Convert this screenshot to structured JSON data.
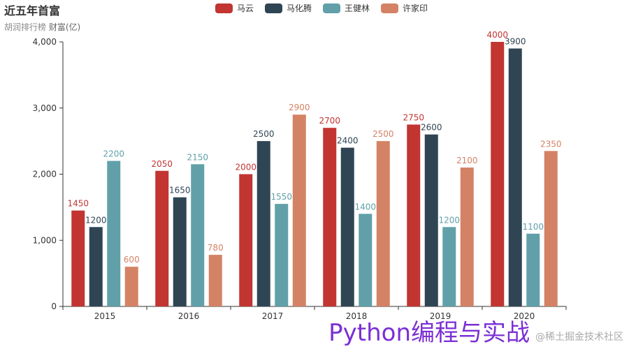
{
  "header": {
    "title": "近五年首富",
    "subtitle": "胡润排行榜",
    "unit": "财富(亿)"
  },
  "colors": [
    "#c23531",
    "#2f4554",
    "#61a0a8",
    "#d48265"
  ],
  "watermark": {
    "main": "Python编程与实战",
    "sub": "@稀土掘金技术社区"
  },
  "chart_data": {
    "type": "bar",
    "categories": [
      "2015",
      "2016",
      "2017",
      "2018",
      "2019",
      "2020"
    ],
    "series": [
      {
        "name": "马云",
        "values": [
          1450,
          2050,
          2000,
          2700,
          2750,
          4000
        ]
      },
      {
        "name": "马化腾",
        "values": [
          1200,
          1650,
          2500,
          2400,
          2600,
          3900
        ]
      },
      {
        "name": "王健林",
        "values": [
          2200,
          2150,
          1550,
          1400,
          1200,
          1100
        ]
      },
      {
        "name": "许家印",
        "values": [
          600,
          780,
          2900,
          2500,
          2100,
          2350
        ]
      }
    ],
    "ylim": [
      0,
      4000
    ],
    "yticks": [
      "0",
      "1,000",
      "2,000",
      "3,000",
      "4,000"
    ],
    "legend_position": "top-center",
    "grid": false
  }
}
